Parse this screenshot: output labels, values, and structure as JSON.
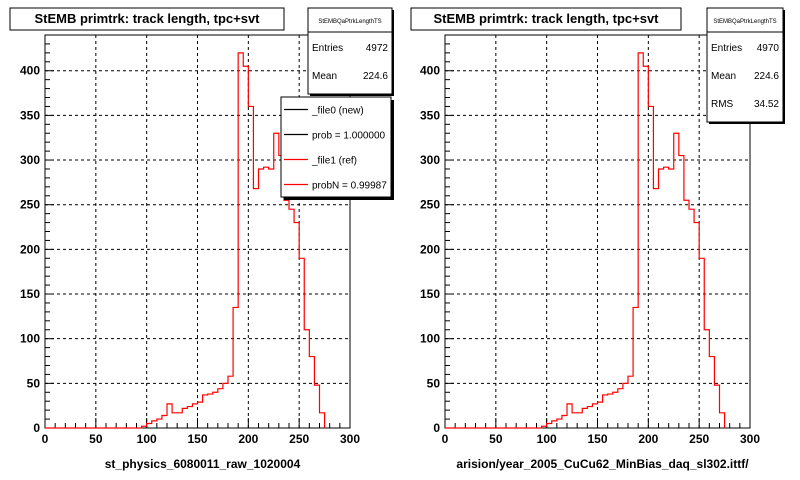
{
  "footer": "",
  "colors": {
    "ref": "#ff0000",
    "new": "#000000",
    "frame": "#000000",
    "background": "#ffffff"
  },
  "chart_data": [
    {
      "type": "histogram",
      "title": "StEMB primtrk: track length, tpc+svt",
      "xlabel": "st_physics_6080011_raw_1020004",
      "ylabel": "",
      "xlim": [
        0,
        300
      ],
      "ylim": [
        0,
        440
      ],
      "bin_width": 5,
      "xticks": [
        "0",
        "50",
        "100",
        "150",
        "200",
        "250",
        "300"
      ],
      "yticks": [
        "0",
        "50",
        "100",
        "150",
        "200",
        "250",
        "300",
        "350",
        "400"
      ],
      "grid": true,
      "stats": {
        "name": "StEMBQaPtrkLengthTS",
        "rows": [
          {
            "label": "Entries",
            "value": "4972"
          },
          {
            "label": "Mean",
            "value": "224.6"
          }
        ]
      },
      "legend": {
        "placement": "top-right",
        "entries": [
          {
            "label": "_file0 (new)",
            "color": "#000000"
          },
          {
            "label": "prob = 1.000000",
            "color": "#000000"
          },
          {
            "label": "_file1 (ref)",
            "color": "#ff0000"
          },
          {
            "label": "probN = 0.99987",
            "color": "#ff0000"
          }
        ]
      },
      "series": [
        {
          "name": "_file1 (ref)",
          "color": "#ff0000",
          "values": [
            0,
            0,
            0,
            0,
            0,
            0,
            0,
            0,
            0,
            0,
            0,
            0,
            0,
            0,
            0,
            0,
            0,
            0,
            0,
            2,
            5,
            8,
            10,
            14,
            27,
            17,
            17,
            22,
            24,
            27,
            29,
            37,
            38,
            40,
            44,
            50,
            58,
            135,
            420,
            405,
            360,
            268,
            290,
            292,
            290,
            330,
            305,
            255,
            245,
            230,
            190,
            110,
            80,
            48,
            17
          ]
        }
      ]
    },
    {
      "type": "histogram",
      "title": "StEMB primtrk: track length, tpc+svt",
      "xlabel": "arision/year_2005_CuCu62_MinBias_daq_sl302.ittf/",
      "ylabel": "",
      "xlim": [
        0,
        300
      ],
      "ylim": [
        0,
        440
      ],
      "bin_width": 5,
      "xticks": [
        "0",
        "50",
        "100",
        "150",
        "200",
        "250",
        "300"
      ],
      "yticks": [
        "0",
        "50",
        "100",
        "150",
        "200",
        "250",
        "300",
        "350",
        "400"
      ],
      "grid": true,
      "stats": {
        "name": "StEMBQaPtrkLengthTS",
        "rows": [
          {
            "label": "Entries",
            "value": "4970"
          },
          {
            "label": "Mean",
            "value": "224.6"
          },
          {
            "label": "RMS",
            "value": "34.52"
          }
        ]
      },
      "series": [
        {
          "name": "",
          "color": "#ff0000",
          "values": [
            0,
            0,
            0,
            0,
            0,
            0,
            0,
            0,
            0,
            0,
            0,
            0,
            0,
            0,
            0,
            0,
            0,
            0,
            0,
            2,
            5,
            8,
            10,
            14,
            27,
            17,
            17,
            22,
            24,
            27,
            29,
            37,
            38,
            40,
            44,
            50,
            58,
            135,
            420,
            405,
            360,
            268,
            290,
            292,
            290,
            330,
            305,
            255,
            245,
            230,
            190,
            110,
            80,
            48,
            17
          ]
        }
      ]
    }
  ]
}
